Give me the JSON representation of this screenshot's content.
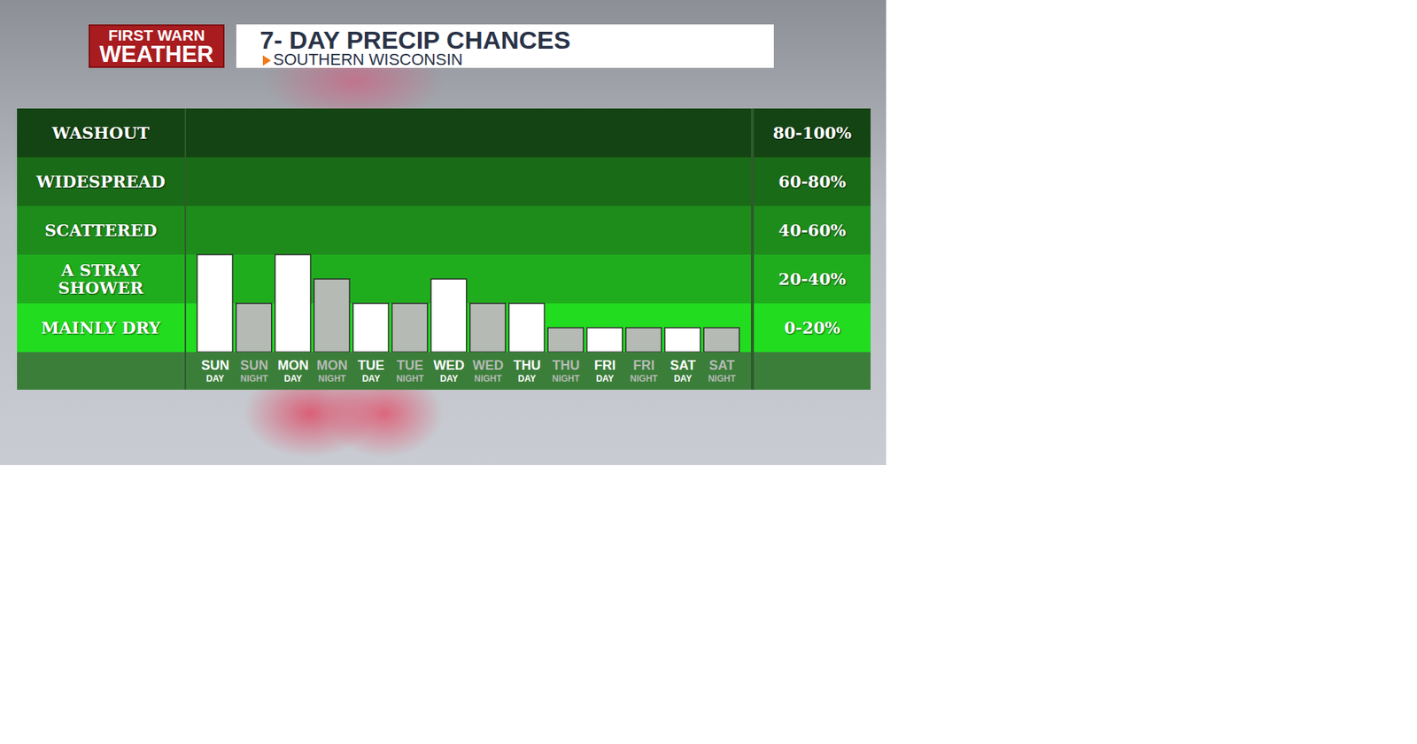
{
  "chart_data": {
    "type": "bar",
    "title": "7- DAY PRECIP CHANCES",
    "subtitle": "SOUTHERN WISCONSIN",
    "logo": [
      "FIRST WARN",
      "WEATHER"
    ],
    "categories": [
      "SUN DAY",
      "SUN NIGHT",
      "MON DAY",
      "MON NIGHT",
      "TUE DAY",
      "TUE NIGHT",
      "WED DAY",
      "WED NIGHT",
      "THU DAY",
      "THU NIGHT",
      "FRI DAY",
      "FRI NIGHT",
      "SAT DAY",
      "SAT NIGHT"
    ],
    "values": [
      40,
      20,
      40,
      30,
      20,
      20,
      30,
      20,
      20,
      10,
      10,
      10,
      10,
      10
    ],
    "colors": [
      "#ffffff",
      "#b6bab5",
      "#ffffff",
      "#b6bab5",
      "#ffffff",
      "#b6bab5",
      "#ffffff",
      "#b6bab5",
      "#ffffff",
      "#b6bab5",
      "#ffffff",
      "#b6bab5",
      "#ffffff",
      "#b6bab5"
    ],
    "ylim": [
      0,
      100
    ],
    "yticks": [
      0,
      20,
      40,
      60,
      80,
      100
    ],
    "tick_labels": "x",
    "bands": [
      {
        "label": "WASHOUT",
        "range_label": "80-100%",
        "from": 80,
        "to": 100,
        "color": "#144413"
      },
      {
        "label": "WIDESPREAD",
        "range_label": "60-80%",
        "from": 60,
        "to": 80,
        "color": "#1a6b17"
      },
      {
        "label": "SCATTERED",
        "range_label": "40-60%",
        "from": 40,
        "to": 60,
        "color": "#1e8c1b"
      },
      {
        "label": "A STRAY SHOWER",
        "range_label": "20-40%",
        "from": 20,
        "to": 40,
        "color": "#20ad1d"
      },
      {
        "label": "MAINLY DRY",
        "range_label": "0-20%",
        "from": 0,
        "to": 20,
        "color": "#22dc1f"
      }
    ]
  }
}
